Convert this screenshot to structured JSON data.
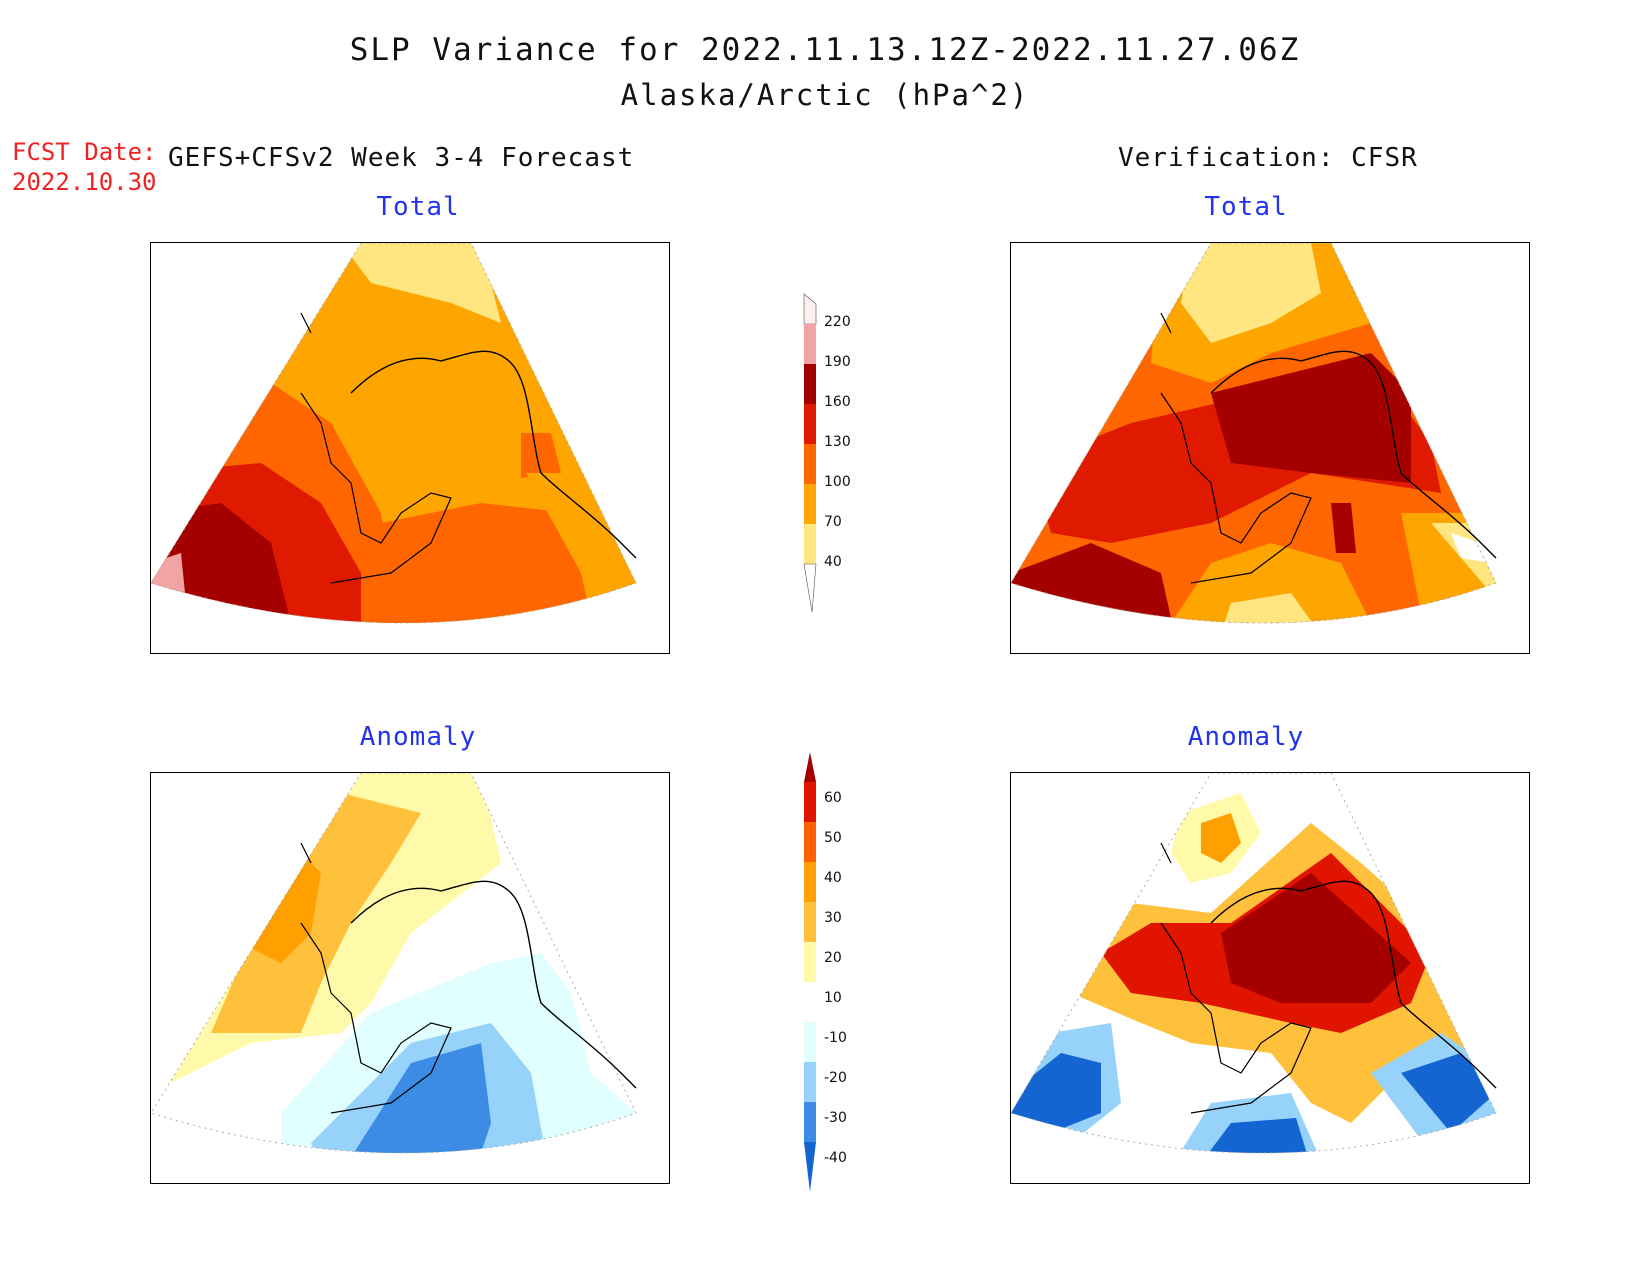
{
  "header": {
    "title": "SLP Variance for 2022.11.13.12Z-2022.11.27.06Z",
    "subtitle": "Alaska/Arctic (hPa^2)",
    "fcst_label": "FCST Date:",
    "fcst_date": "2022.10.30",
    "model_label": "GEFS+CFSv2 Week 3-4 Forecast",
    "verification_label": "Verification: CFSR"
  },
  "panels": {
    "forecast_total_title": "Total",
    "forecast_anomaly_title": "Anomaly",
    "verification_total_title": "Total",
    "verification_anomaly_title": "Anomaly"
  },
  "colorbars": {
    "total": {
      "levels": [
        "40",
        "70",
        "100",
        "130",
        "160",
        "190",
        "220"
      ],
      "colors": [
        "#ffe680",
        "#ffa500",
        "#ff6600",
        "#e01a00",
        "#a50000",
        "#f2a3a3",
        "#ffeeee"
      ]
    },
    "anomaly": {
      "levels": [
        "-40",
        "-30",
        "-20",
        "-10",
        "10",
        "20",
        "30",
        "40",
        "50",
        "60"
      ],
      "colors": [
        "#1464d2",
        "#3c8ce6",
        "#96d2fa",
        "#e1ffff",
        "#ffffff",
        "#fffaaa",
        "#ffc03c",
        "#ffa000",
        "#ff6000",
        "#e11400",
        "#a50000"
      ]
    }
  }
}
